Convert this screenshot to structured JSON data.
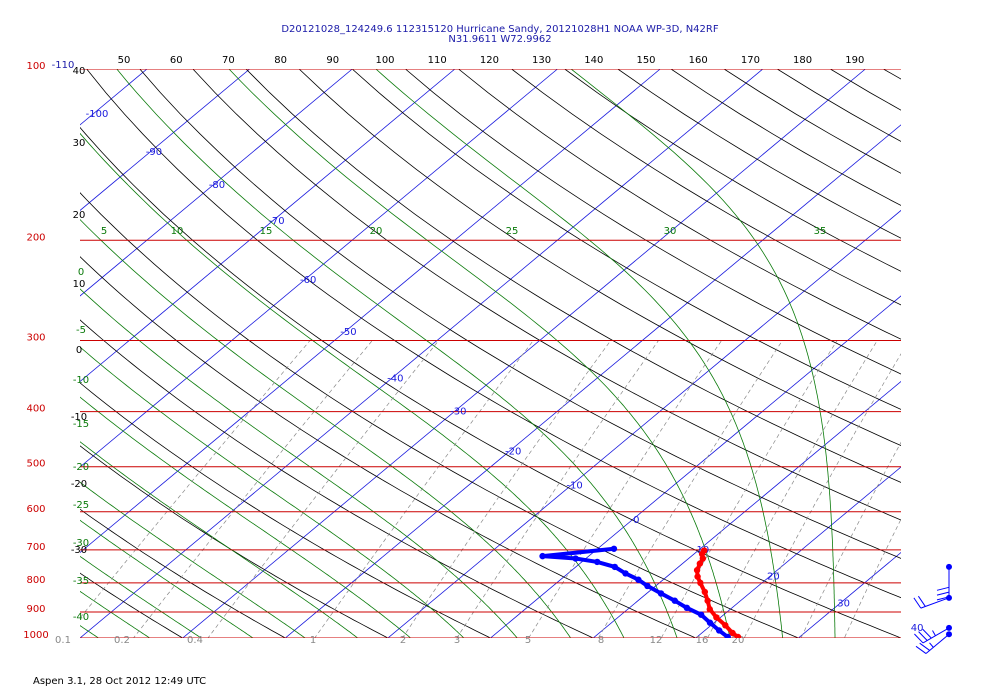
{
  "title": {
    "line1": "D20121028_124249.6 112315120 Hurricane Sandy, 20121028H1 NOAA WP-3D, N42RF",
    "line2": "N31.9611 W72.9962"
  },
  "footer": "Aspen 3.1, 28 Oct 2012  12:49 UTC",
  "colors": {
    "isobar": "#cc0000",
    "isotherm": "#1a1add",
    "dry_adiabat": "#000000",
    "moist_adiabat": "#0a7a0a",
    "mixing_ratio": "#888888",
    "temperature_trace": "#ff0000",
    "dewpoint_trace": "#0000ff"
  },
  "chart_data": {
    "type": "skew-t log-p diagram",
    "pressure_levels": [
      "100",
      "200",
      "300",
      "400",
      "500",
      "600",
      "700",
      "800",
      "900",
      "1000"
    ],
    "top_scale_labels": [
      "50",
      "60",
      "70",
      "80",
      "90",
      "100",
      "110",
      "120",
      "130",
      "140",
      "150",
      "160",
      "170",
      "180",
      "190"
    ],
    "top_left_labels": [
      "-110",
      "40"
    ],
    "isotherm_labels": [
      "-100",
      "-90",
      "-80",
      "-70",
      "-60",
      "-50",
      "-40",
      "-30",
      "-20",
      "-10",
      "0",
      "10",
      "20",
      "30",
      "40"
    ],
    "dry_adiabat_labels": [
      "30",
      "20",
      "10",
      "0",
      "-10",
      "-20",
      "-30"
    ],
    "moist_adiabat_left_labels": [
      "0",
      "-5",
      "-10",
      "-15",
      "-20",
      "-25",
      "-30",
      "-35",
      "-40"
    ],
    "moist_adiabat_top_labels": [
      "5",
      "10",
      "15",
      "20",
      "25",
      "30",
      "35"
    ],
    "mixing_ratio_labels": [
      "0.1",
      "0.2",
      "0.4",
      "1",
      "2",
      "3",
      "5",
      "8",
      "12",
      "16",
      "20"
    ],
    "temperature_profile": [
      {
        "p": 702,
        "t": 10.6
      },
      {
        "p": 712,
        "t": 10.8
      },
      {
        "p": 725,
        "t": 11.4
      },
      {
        "p": 740,
        "t": 11.7
      },
      {
        "p": 760,
        "t": 12.2
      },
      {
        "p": 780,
        "t": 13.0
      },
      {
        "p": 800,
        "t": 14.0
      },
      {
        "p": 830,
        "t": 15.5
      },
      {
        "p": 860,
        "t": 16.8
      },
      {
        "p": 890,
        "t": 18.0
      },
      {
        "p": 920,
        "t": 19.6
      },
      {
        "p": 950,
        "t": 21.4
      },
      {
        "p": 980,
        "t": 23.0
      },
      {
        "p": 996,
        "t": 24.0
      }
    ],
    "dewpoint_profile": [
      {
        "p": 697,
        "t": 1.6
      },
      {
        "p": 718,
        "t": -4.5
      },
      {
        "p": 725,
        "t": -1.0
      },
      {
        "p": 735,
        "t": 1.5
      },
      {
        "p": 750,
        "t": 3.8
      },
      {
        "p": 770,
        "t": 5.6
      },
      {
        "p": 790,
        "t": 7.6
      },
      {
        "p": 810,
        "t": 9.2
      },
      {
        "p": 835,
        "t": 11.4
      },
      {
        "p": 860,
        "t": 13.6
      },
      {
        "p": 885,
        "t": 15.6
      },
      {
        "p": 910,
        "t": 17.8
      },
      {
        "p": 940,
        "t": 19.6
      },
      {
        "p": 970,
        "t": 21.4
      },
      {
        "p": 996,
        "t": 23.0
      }
    ],
    "wind_barbs": [
      {
        "p": 750,
        "dir": 180,
        "speed": 30
      },
      {
        "p": 850,
        "dir": 250,
        "speed": 20
      },
      {
        "p": 960,
        "dir": 240,
        "speed": 25
      },
      {
        "p": 985,
        "dir": 230,
        "speed": 15
      }
    ],
    "p_range": [
      1000,
      100
    ],
    "t_range_bottom": [
      -40,
      40
    ],
    "grid": true
  }
}
